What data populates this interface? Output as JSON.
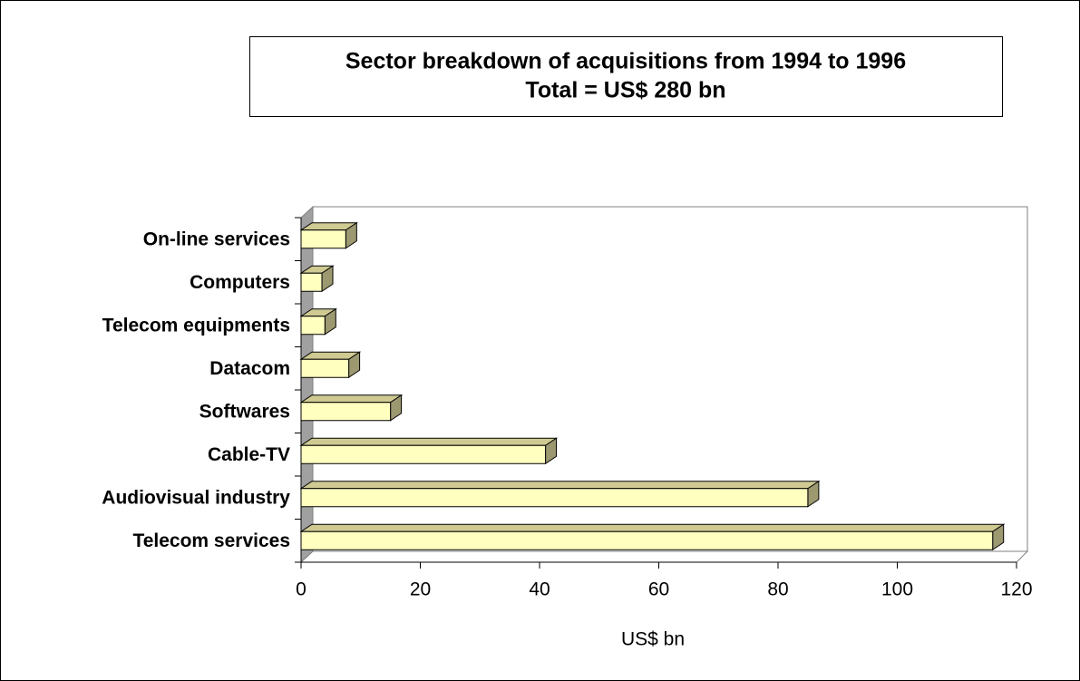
{
  "chart_data": {
    "type": "bar",
    "title": "Sector breakdown of acquisitions from 1994 to 1996",
    "subtitle": "Total = US$ 280 bn",
    "xlabel": "US$ bn",
    "categories": [
      "Telecom services",
      "Audiovisual industry",
      "Cable-TV",
      "Softwares",
      "Datacom",
      "Telecom equipments",
      "Computers",
      "On-line services"
    ],
    "values": [
      116,
      85,
      41,
      15,
      8,
      4,
      3.5,
      7.5
    ],
    "color": "#ffffc0",
    "xlim": [
      0,
      120
    ],
    "xticks": [
      0,
      20,
      40,
      60,
      80,
      100,
      120
    ]
  }
}
